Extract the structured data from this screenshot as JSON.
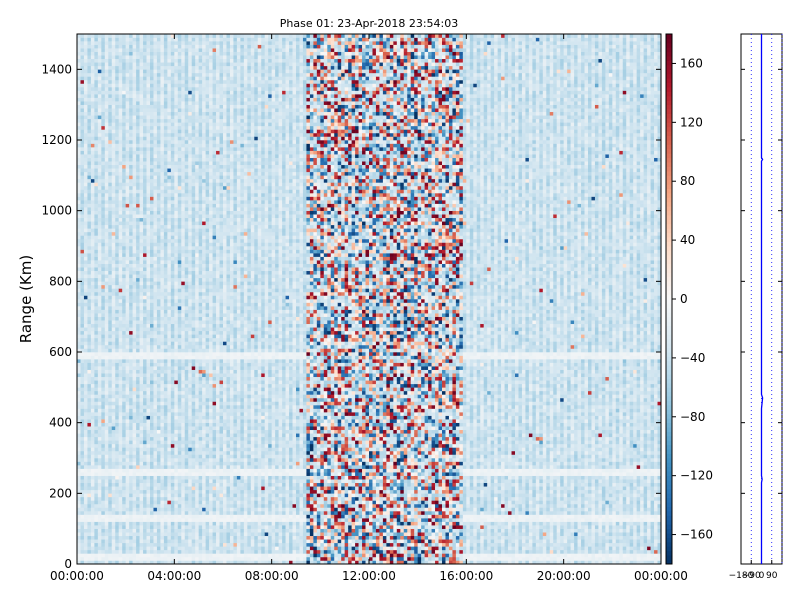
{
  "chart_data": [
    {
      "type": "heatmap",
      "title": "Phase 01: 23-Apr-2018 23:54:03",
      "xlabel": "",
      "ylabel": "Range (Km)",
      "x_ticks": [
        "00:00:00",
        "04:00:00",
        "08:00:00",
        "12:00:00",
        "16:00:00",
        "20:00:00",
        "00:00:00"
      ],
      "x_tick_hours": [
        0,
        4,
        8,
        12,
        16,
        20,
        24
      ],
      "xlim_hours": [
        0,
        24
      ],
      "y_ticks": [
        0,
        200,
        400,
        600,
        800,
        1000,
        1200,
        1400
      ],
      "ylim": [
        0,
        1500
      ],
      "colormap": "RdBu_r",
      "colorbar": {
        "ticks": [
          160,
          120,
          80,
          40,
          0,
          -40,
          -80,
          -120,
          -160
        ],
        "range": [
          -180,
          180
        ]
      },
      "pattern_notes": {
        "high_variance_hours": [
          9.5,
          15.8
        ],
        "background_level": -40,
        "faint_bands_km": [
          20,
          130,
          260,
          590
        ]
      },
      "grid": false
    },
    {
      "type": "line",
      "title": "",
      "xlabel": "",
      "ylabel": "",
      "x_ticks": [
        "−180",
        "−90",
        "0",
        "90"
      ],
      "x_tick_values": [
        -180,
        -90,
        0,
        90
      ],
      "xlim": [
        -180,
        180
      ],
      "ylim": [
        0,
        1500
      ],
      "y_ticks": [
        0,
        200,
        400,
        600,
        800,
        1000,
        1200,
        1400
      ],
      "dotted_reference_lines": [
        -90,
        0,
        90,
        180
      ],
      "series": [
        {
          "color": "#0000ff",
          "x": [
            0,
            0,
            0,
            0,
            5,
            0,
            0,
            0,
            10,
            0,
            0,
            0,
            0,
            10,
            0,
            0
          ],
          "y": [
            0,
            100,
            130,
            230,
            240,
            250,
            350,
            440,
            470,
            480,
            800,
            1100,
            1140,
            1145,
            1150,
            1500
          ]
        }
      ]
    }
  ]
}
